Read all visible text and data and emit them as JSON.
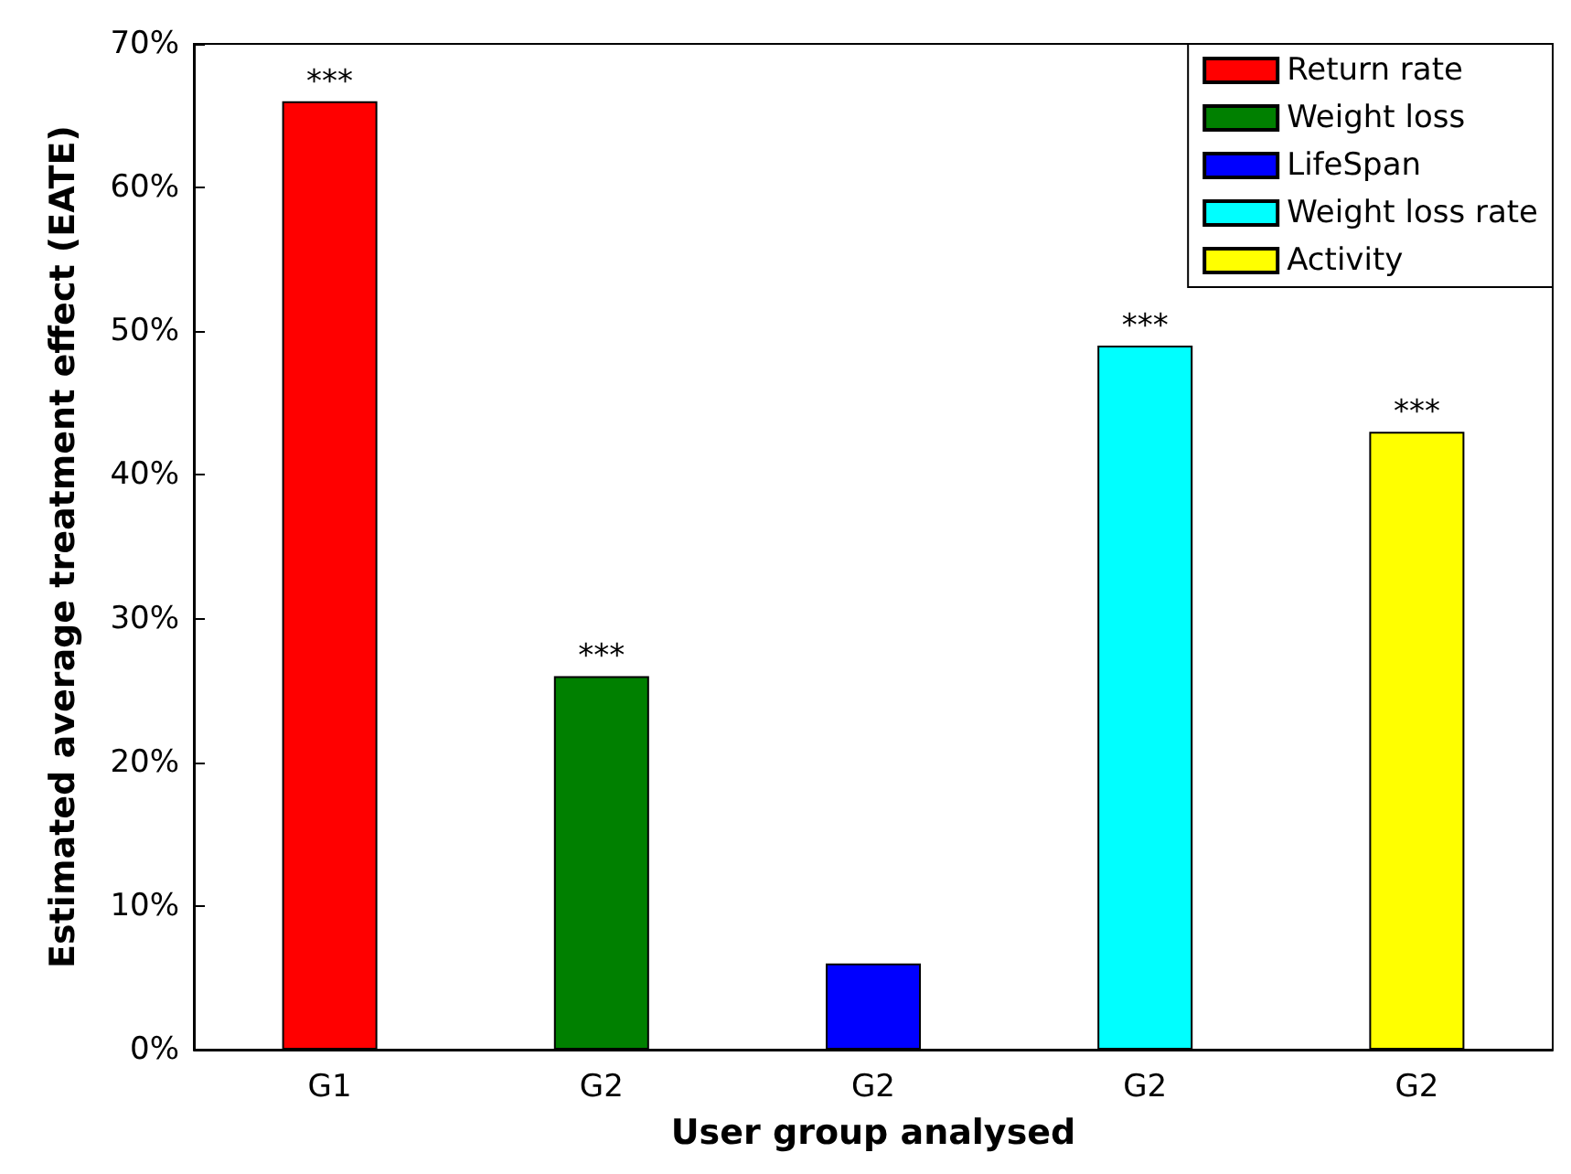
{
  "chart_data": {
    "type": "bar",
    "xlabel": "User group analysed",
    "ylabel": "Estimated average treatment effect (EATE)",
    "categories": [
      "G1",
      "G2",
      "G2",
      "G2",
      "G2"
    ],
    "series": [
      {
        "name": "Return rate",
        "color": "#ff0000",
        "values": [
          66,
          null,
          null,
          null,
          null
        ],
        "value_labels": [
          "***",
          null,
          null,
          null,
          null
        ]
      },
      {
        "name": "Weight loss",
        "color": "#008000",
        "values": [
          null,
          26,
          null,
          null,
          null
        ],
        "value_labels": [
          null,
          "***",
          null,
          null,
          null
        ]
      },
      {
        "name": "LifeSpan",
        "color": "#0000ff",
        "values": [
          null,
          null,
          6,
          null,
          null
        ]
      },
      {
        "name": "Weight loss rate",
        "color": "#00ffff",
        "values": [
          null,
          null,
          null,
          49,
          null
        ],
        "value_labels": [
          null,
          null,
          null,
          "***",
          null
        ]
      },
      {
        "name": "Activity",
        "color": "#ffff00",
        "values": [
          null,
          null,
          null,
          null,
          43
        ],
        "value_labels": [
          null,
          null,
          null,
          null,
          "***"
        ]
      }
    ],
    "stacked": true,
    "ylim": [
      0,
      70
    ],
    "yticks": [
      {
        "value": 0,
        "label": "0%"
      },
      {
        "value": 10,
        "label": "10%"
      },
      {
        "value": 20,
        "label": "20%"
      },
      {
        "value": 30,
        "label": "30%"
      },
      {
        "value": 40,
        "label": "40%"
      },
      {
        "value": 50,
        "label": "50%"
      },
      {
        "value": 60,
        "label": "60%"
      },
      {
        "value": 70,
        "label": "70%"
      }
    ],
    "grid": false,
    "legend": "top right"
  }
}
